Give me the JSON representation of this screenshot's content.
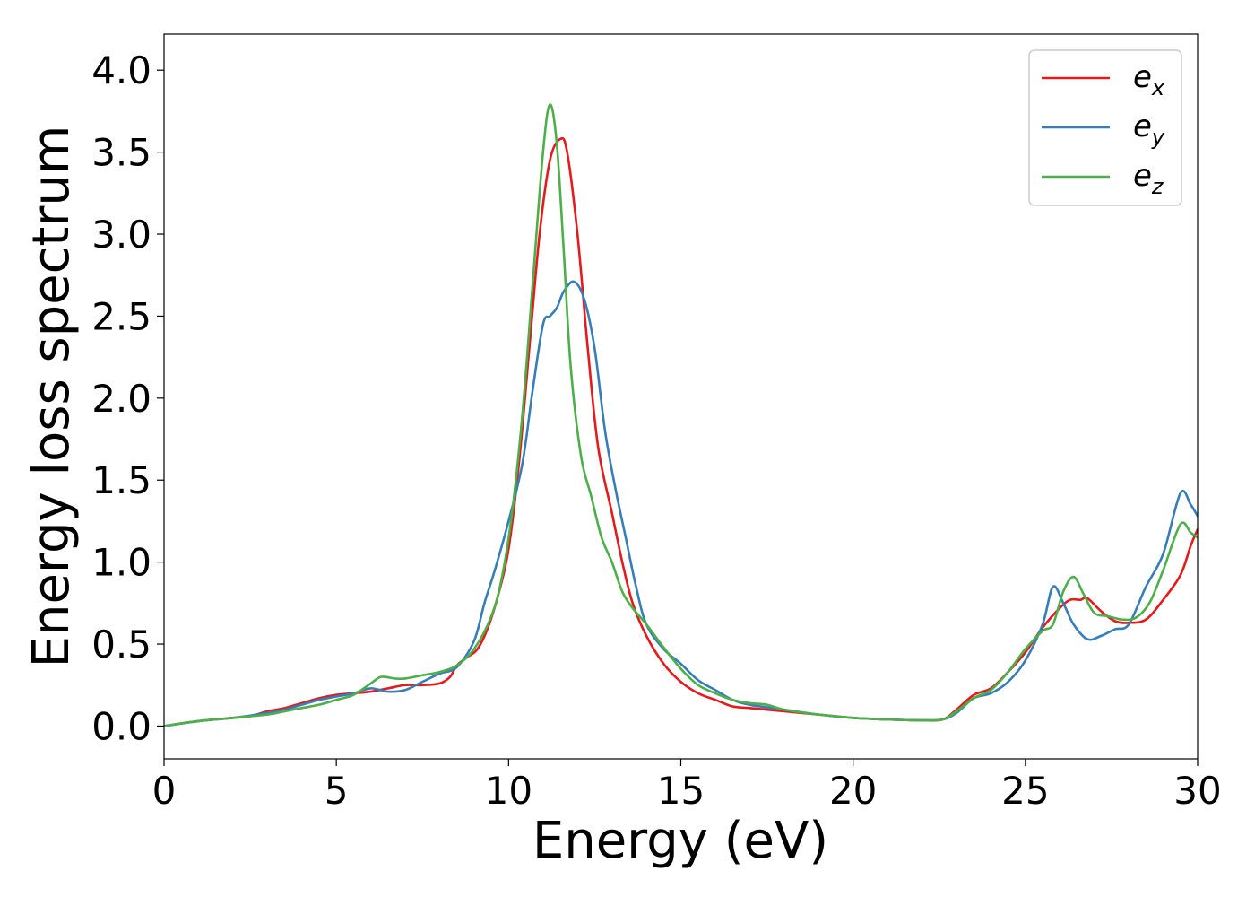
{
  "chart_data": {
    "type": "line",
    "xlabel": "Energy (eV)",
    "ylabel": "Energy loss spectrum",
    "xlim": [
      0,
      30
    ],
    "ylim": [
      -0.2,
      4.22
    ],
    "xticks": [
      "0",
      "5",
      "10",
      "15",
      "20",
      "25",
      "30"
    ],
    "yticks": [
      "0.0",
      "0.5",
      "1.0",
      "1.5",
      "2.0",
      "2.5",
      "3.0",
      "3.5",
      "4.0"
    ],
    "grid": false,
    "legend_position": "top-right",
    "series": [
      {
        "name": "e",
        "subscript": "x",
        "color": "#e41a1c",
        "points": [
          [
            0,
            0.0
          ],
          [
            1,
            0.03
          ],
          [
            2,
            0.05
          ],
          [
            2.5,
            0.06
          ],
          [
            3,
            0.09
          ],
          [
            3.5,
            0.11
          ],
          [
            4,
            0.14
          ],
          [
            4.5,
            0.17
          ],
          [
            5,
            0.19
          ],
          [
            5.5,
            0.2
          ],
          [
            6,
            0.21
          ],
          [
            6.5,
            0.23
          ],
          [
            7,
            0.25
          ],
          [
            7.5,
            0.25
          ],
          [
            8,
            0.26
          ],
          [
            8.3,
            0.3
          ],
          [
            8.5,
            0.37
          ],
          [
            8.8,
            0.42
          ],
          [
            9.1,
            0.47
          ],
          [
            9.4,
            0.6
          ],
          [
            9.7,
            0.8
          ],
          [
            10,
            1.08
          ],
          [
            10.3,
            1.6
          ],
          [
            10.6,
            2.3
          ],
          [
            10.9,
            3.0
          ],
          [
            11.2,
            3.45
          ],
          [
            11.5,
            3.58
          ],
          [
            11.7,
            3.5
          ],
          [
            12,
            3.0
          ],
          [
            12.3,
            2.3
          ],
          [
            12.6,
            1.7
          ],
          [
            13,
            1.3
          ],
          [
            13.3,
            1.0
          ],
          [
            13.6,
            0.75
          ],
          [
            14,
            0.55
          ],
          [
            14.5,
            0.38
          ],
          [
            15,
            0.27
          ],
          [
            15.5,
            0.2
          ],
          [
            16,
            0.16
          ],
          [
            16.5,
            0.12
          ],
          [
            17,
            0.11
          ],
          [
            18,
            0.09
          ],
          [
            19,
            0.07
          ],
          [
            20,
            0.05
          ],
          [
            21,
            0.04
          ],
          [
            22,
            0.035
          ],
          [
            22.6,
            0.04
          ],
          [
            23,
            0.1
          ],
          [
            23.5,
            0.19
          ],
          [
            24,
            0.23
          ],
          [
            24.5,
            0.33
          ],
          [
            25,
            0.45
          ],
          [
            25.5,
            0.6
          ],
          [
            26,
            0.72
          ],
          [
            26.3,
            0.77
          ],
          [
            26.6,
            0.77
          ],
          [
            26.8,
            0.78
          ],
          [
            27.2,
            0.7
          ],
          [
            27.6,
            0.64
          ],
          [
            28,
            0.63
          ],
          [
            28.5,
            0.65
          ],
          [
            29,
            0.77
          ],
          [
            29.5,
            0.92
          ],
          [
            29.8,
            1.1
          ],
          [
            30,
            1.2
          ]
        ]
      },
      {
        "name": "e",
        "subscript": "y",
        "color": "#377eb8",
        "points": [
          [
            0,
            0.0
          ],
          [
            1,
            0.03
          ],
          [
            2,
            0.05
          ],
          [
            3,
            0.08
          ],
          [
            3.5,
            0.1
          ],
          [
            4,
            0.13
          ],
          [
            4.5,
            0.16
          ],
          [
            5,
            0.18
          ],
          [
            5.5,
            0.2
          ],
          [
            6,
            0.23
          ],
          [
            6.5,
            0.21
          ],
          [
            7,
            0.22
          ],
          [
            7.5,
            0.27
          ],
          [
            8,
            0.32
          ],
          [
            8.5,
            0.36
          ],
          [
            9,
            0.52
          ],
          [
            9.3,
            0.75
          ],
          [
            9.6,
            0.95
          ],
          [
            10,
            1.25
          ],
          [
            10.4,
            1.6
          ],
          [
            10.7,
            2.05
          ],
          [
            11,
            2.45
          ],
          [
            11.2,
            2.5
          ],
          [
            11.4,
            2.55
          ],
          [
            11.6,
            2.65
          ],
          [
            11.9,
            2.71
          ],
          [
            12.2,
            2.6
          ],
          [
            12.5,
            2.3
          ],
          [
            12.8,
            1.8
          ],
          [
            13.1,
            1.45
          ],
          [
            13.4,
            1.15
          ],
          [
            13.7,
            0.85
          ],
          [
            14,
            0.62
          ],
          [
            14.5,
            0.47
          ],
          [
            15,
            0.38
          ],
          [
            15.5,
            0.28
          ],
          [
            16,
            0.22
          ],
          [
            16.5,
            0.16
          ],
          [
            17,
            0.13
          ],
          [
            18,
            0.1
          ],
          [
            19,
            0.07
          ],
          [
            20,
            0.05
          ],
          [
            21,
            0.04
          ],
          [
            22,
            0.035
          ],
          [
            22.6,
            0.04
          ],
          [
            23,
            0.08
          ],
          [
            23.5,
            0.17
          ],
          [
            24,
            0.2
          ],
          [
            24.5,
            0.27
          ],
          [
            25,
            0.4
          ],
          [
            25.5,
            0.62
          ],
          [
            25.8,
            0.85
          ],
          [
            26.1,
            0.75
          ],
          [
            26.4,
            0.62
          ],
          [
            26.8,
            0.53
          ],
          [
            27.2,
            0.55
          ],
          [
            27.6,
            0.59
          ],
          [
            28,
            0.62
          ],
          [
            28.5,
            0.85
          ],
          [
            29,
            1.05
          ],
          [
            29.5,
            1.42
          ],
          [
            29.8,
            1.35
          ],
          [
            30,
            1.28
          ]
        ]
      },
      {
        "name": "e",
        "subscript": "z",
        "color": "#4daf4a",
        "points": [
          [
            0,
            0.0
          ],
          [
            1,
            0.03
          ],
          [
            2,
            0.05
          ],
          [
            3,
            0.07
          ],
          [
            3.5,
            0.09
          ],
          [
            4,
            0.11
          ],
          [
            4.5,
            0.13
          ],
          [
            5,
            0.16
          ],
          [
            5.5,
            0.19
          ],
          [
            6,
            0.26
          ],
          [
            6.3,
            0.3
          ],
          [
            6.7,
            0.29
          ],
          [
            7,
            0.29
          ],
          [
            7.5,
            0.31
          ],
          [
            8,
            0.33
          ],
          [
            8.5,
            0.37
          ],
          [
            9,
            0.47
          ],
          [
            9.5,
            0.67
          ],
          [
            9.8,
            0.9
          ],
          [
            10.1,
            1.3
          ],
          [
            10.4,
            1.9
          ],
          [
            10.7,
            2.7
          ],
          [
            11,
            3.5
          ],
          [
            11.2,
            3.79
          ],
          [
            11.4,
            3.55
          ],
          [
            11.6,
            2.9
          ],
          [
            11.8,
            2.2
          ],
          [
            12.1,
            1.65
          ],
          [
            12.4,
            1.4
          ],
          [
            12.7,
            1.15
          ],
          [
            13,
            1.0
          ],
          [
            13.3,
            0.82
          ],
          [
            13.6,
            0.72
          ],
          [
            14,
            0.62
          ],
          [
            14.5,
            0.48
          ],
          [
            15,
            0.35
          ],
          [
            15.5,
            0.25
          ],
          [
            16,
            0.2
          ],
          [
            16.5,
            0.16
          ],
          [
            17,
            0.14
          ],
          [
            17.5,
            0.13
          ],
          [
            18,
            0.1
          ],
          [
            19,
            0.07
          ],
          [
            20,
            0.05
          ],
          [
            21,
            0.04
          ],
          [
            22,
            0.035
          ],
          [
            22.6,
            0.04
          ],
          [
            23,
            0.09
          ],
          [
            23.5,
            0.17
          ],
          [
            24,
            0.22
          ],
          [
            24.5,
            0.33
          ],
          [
            25,
            0.47
          ],
          [
            25.5,
            0.58
          ],
          [
            25.8,
            0.62
          ],
          [
            26.1,
            0.82
          ],
          [
            26.4,
            0.91
          ],
          [
            26.7,
            0.8
          ],
          [
            27,
            0.69
          ],
          [
            27.4,
            0.67
          ],
          [
            27.8,
            0.65
          ],
          [
            28.2,
            0.66
          ],
          [
            28.6,
            0.75
          ],
          [
            29,
            0.95
          ],
          [
            29.5,
            1.23
          ],
          [
            29.8,
            1.18
          ],
          [
            30,
            1.15
          ]
        ]
      }
    ]
  }
}
